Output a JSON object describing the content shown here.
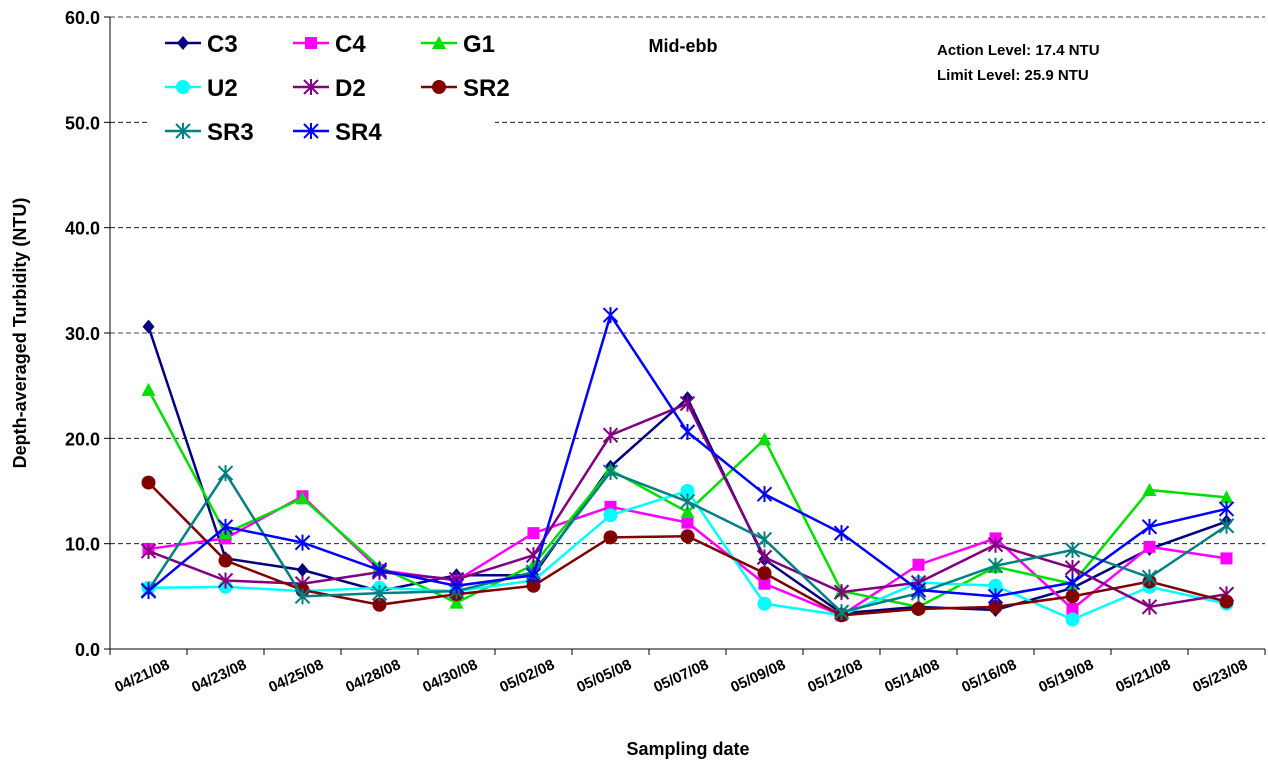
{
  "chart_data": {
    "type": "line",
    "title": "Mid-ebb",
    "annotations": [
      "Action Level: 17.4 NTU",
      "Limit Level: 25.9 NTU"
    ],
    "x_label": "Sampling date",
    "y_label": "Depth-averaged Turbidity (NTU)",
    "categories": [
      "04/21/08",
      "04/23/08",
      "04/25/08",
      "04/28/08",
      "04/30/08",
      "05/02/08",
      "05/05/08",
      "05/07/08",
      "05/09/08",
      "05/12/08",
      "05/14/08",
      "05/16/08",
      "05/19/08",
      "05/21/08",
      "05/23/08"
    ],
    "ylim": [
      0,
      60
    ],
    "yticks": [
      {
        "value": 0,
        "label": "0.0"
      },
      {
        "value": 10,
        "label": "10.0"
      },
      {
        "value": 20,
        "label": "20.0"
      },
      {
        "value": 30,
        "label": "30.0"
      },
      {
        "value": 40,
        "label": "40.0"
      },
      {
        "value": 50,
        "label": "50.0"
      },
      {
        "value": 60,
        "label": "60.0"
      }
    ],
    "grid": true,
    "legend": "upper left",
    "series": [
      {
        "name": "C3",
        "color": "#000080",
        "marker": "diamond",
        "values": [
          30.6,
          8.6,
          7.5,
          5.5,
          7.0,
          7.0,
          17.3,
          23.8,
          8.5,
          3.4,
          4.0,
          3.7,
          5.8,
          9.5,
          12.1
        ]
      },
      {
        "name": "C4",
        "color": "#ff00ff",
        "marker": "square",
        "values": [
          9.5,
          10.5,
          14.5,
          7.5,
          6.5,
          11.0,
          13.5,
          12.0,
          6.2,
          3.2,
          8.0,
          10.5,
          3.8,
          9.7,
          8.6
        ]
      },
      {
        "name": "G1",
        "color": "#00e000",
        "marker": "triangle",
        "values": [
          24.6,
          11.0,
          14.3,
          7.8,
          4.4,
          8.0,
          17.0,
          13.0,
          19.9,
          5.5,
          4.0,
          7.8,
          6.2,
          15.1,
          14.4
        ]
      },
      {
        "name": "U2",
        "color": "#00ffff",
        "marker": "circle",
        "values": [
          5.8,
          5.9,
          5.5,
          5.8,
          5.5,
          6.5,
          12.7,
          15.0,
          4.3,
          3.2,
          6.3,
          6.0,
          2.8,
          5.9,
          4.3
        ]
      },
      {
        "name": "D2",
        "color": "#800080",
        "marker": "star",
        "values": [
          9.3,
          6.5,
          6.2,
          7.3,
          6.6,
          8.9,
          20.3,
          23.3,
          8.7,
          5.4,
          6.3,
          9.9,
          7.7,
          4.0,
          5.2
        ]
      },
      {
        "name": "SR2",
        "color": "#800000",
        "marker": "circle",
        "values": [
          15.8,
          8.4,
          5.6,
          4.2,
          5.2,
          6.0,
          10.6,
          10.7,
          7.2,
          3.2,
          3.8,
          4.0,
          5.0,
          6.4,
          4.5
        ]
      },
      {
        "name": "SR3",
        "color": "#008080",
        "marker": "star",
        "values": [
          5.6,
          16.7,
          5.0,
          5.3,
          5.5,
          7.3,
          16.8,
          14.0,
          10.4,
          3.5,
          5.3,
          7.9,
          9.4,
          6.8,
          11.7
        ]
      },
      {
        "name": "SR4",
        "color": "#0000ff",
        "marker": "star",
        "values": [
          5.5,
          11.6,
          10.1,
          7.5,
          6.0,
          7.0,
          31.7,
          20.6,
          14.7,
          11.0,
          5.6,
          5.0,
          6.3,
          11.6,
          13.3
        ]
      }
    ]
  }
}
